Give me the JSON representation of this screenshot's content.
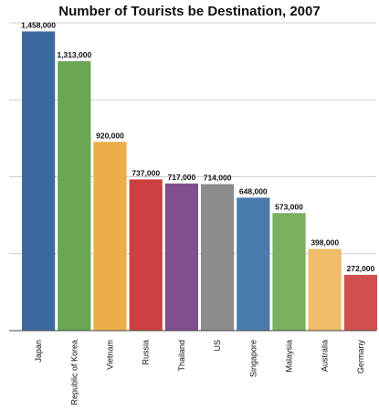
{
  "chart_data": {
    "type": "bar",
    "title": "Number of Tourists be Destination, 2007",
    "xlabel": "",
    "ylabel": "",
    "ylim": [
      0,
      1500000
    ],
    "grid": true,
    "y_ticks": [
      0,
      375000,
      750000,
      1125000,
      1500000
    ],
    "categories": [
      "Japan",
      "Republic of Korea",
      "Vietnam",
      "Russia",
      "Thailand",
      "US",
      "Singapore",
      "Malaysia",
      "Australia",
      "Germany"
    ],
    "values": [
      1458000,
      1313000,
      920000,
      737000,
      717000,
      714000,
      648000,
      573000,
      398000,
      272000
    ],
    "data_labels": [
      "1,458,000",
      "1,313,000",
      "920,000",
      "737,000",
      "717,000",
      "714,000",
      "648,000",
      "573,000",
      "398,000",
      "272,000"
    ],
    "colors": [
      "#3a6a9e",
      "#6aa653",
      "#ecae4a",
      "#cc4040",
      "#7f4e8c",
      "#8c8c8c",
      "#4a7bad",
      "#79b05f",
      "#eebc6a",
      "#d05050"
    ]
  }
}
